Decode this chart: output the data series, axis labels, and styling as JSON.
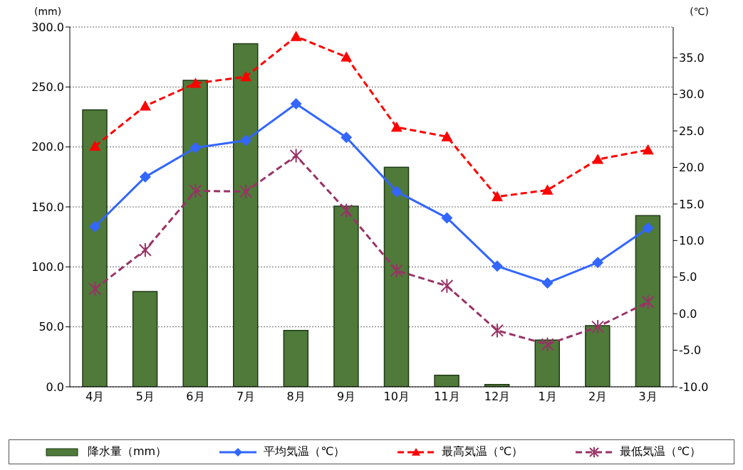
{
  "chart_data": {
    "type": "bar",
    "ylabel": "(mm)",
    "y2label": "(℃)",
    "categories": [
      "4月",
      "5月",
      "6月",
      "7月",
      "8月",
      "9月",
      "10月",
      "11月",
      "12月",
      "1月",
      "2月",
      "3月"
    ],
    "series": [
      {
        "name": "降水量（mm）",
        "color": "#4f7a3a",
        "values": [
          231,
          79.5,
          255.6,
          286,
          47,
          150.6,
          183,
          9.7,
          2,
          39,
          51,
          142.7
        ]
      },
      {
        "name": "平均気温（℃）",
        "type": "line",
        "axis": "y2",
        "color": "#3366ff",
        "marker": "diamond",
        "line_style": "solid",
        "values": [
          11.9,
          18.7,
          22.7,
          23.7,
          28.7,
          24.1,
          16.7,
          13.1,
          6.5,
          4.2,
          7.0,
          11.7
        ]
      },
      {
        "name": "最高気温（℃）",
        "type": "line",
        "axis": "y2",
        "color": "#ff0000",
        "marker": "triangle",
        "line_style": "dashed",
        "values": [
          22.9,
          28.4,
          31.5,
          32.4,
          37.9,
          35.1,
          25.5,
          24.2,
          16.0,
          16.9,
          21.1,
          22.4
        ]
      },
      {
        "name": "最低気温（℃）",
        "type": "line",
        "axis": "y2",
        "color": "#993366",
        "marker": "cross",
        "line_style": "dashed",
        "values": [
          3.4,
          8.7,
          16.8,
          16.7,
          21.6,
          14.1,
          5.9,
          3.8,
          -2.3,
          -4.2,
          -1.8,
          1.6
        ]
      }
    ],
    "ylim": [
      0,
      300
    ],
    "yticks": [
      {
        "value": 0,
        "label": "0.0"
      },
      {
        "value": 50,
        "label": "50.0"
      },
      {
        "value": 100,
        "label": "100.0"
      },
      {
        "value": 150,
        "label": "150.0"
      },
      {
        "value": 200,
        "label": "200.0"
      },
      {
        "value": 250,
        "label": "250.0"
      },
      {
        "value": 300,
        "label": "300.0"
      }
    ],
    "y2lim": [
      -10,
      39.2
    ],
    "y2ticks": [
      {
        "value": -10,
        "label": "-10.0"
      },
      {
        "value": -5,
        "label": "-5.0"
      },
      {
        "value": 0,
        "label": "0.0"
      },
      {
        "value": 5,
        "label": "5.0"
      },
      {
        "value": 10,
        "label": "10.0"
      },
      {
        "value": 15,
        "label": "15.0"
      },
      {
        "value": 20,
        "label": "20.0"
      },
      {
        "value": 25,
        "label": "25.0"
      },
      {
        "value": 30,
        "label": "30.0"
      },
      {
        "value": 35,
        "label": "35.0"
      }
    ],
    "grid": "y",
    "legend": "bottom"
  }
}
